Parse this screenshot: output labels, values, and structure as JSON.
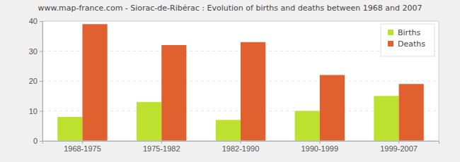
{
  "chart_data": {
    "type": "bar",
    "title": "www.map-france.com - Siorac-de-Ribérac : Evolution of births and deaths between 1968 and 2007",
    "categories": [
      "1968-1975",
      "1975-1982",
      "1982-1990",
      "1990-1999",
      "1999-2007"
    ],
    "series": [
      {
        "name": "Births",
        "color": "#bde12e",
        "values": [
          8,
          13,
          7,
          10,
          15
        ]
      },
      {
        "name": "Deaths",
        "color": "#e06030",
        "values": [
          39,
          32,
          33,
          22,
          19
        ]
      }
    ],
    "ylim": [
      0,
      40
    ],
    "yticks": [
      0,
      10,
      20,
      30,
      40
    ],
    "grid": true,
    "legend": "top-right"
  }
}
